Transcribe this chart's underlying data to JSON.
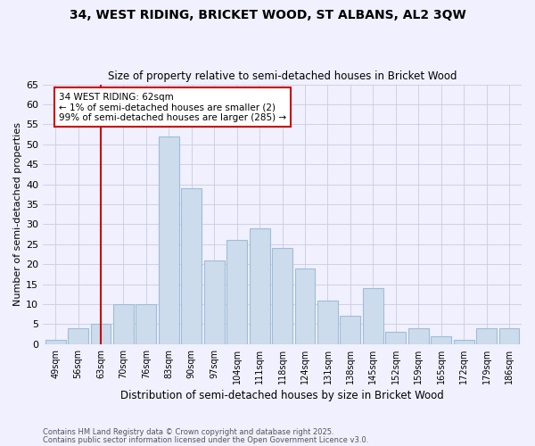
{
  "title1": "34, WEST RIDING, BRICKET WOOD, ST ALBANS, AL2 3QW",
  "title2": "Size of property relative to semi-detached houses in Bricket Wood",
  "xlabel": "Distribution of semi-detached houses by size in Bricket Wood",
  "ylabel": "Number of semi-detached properties",
  "categories": [
    "49sqm",
    "56sqm",
    "63sqm",
    "70sqm",
    "76sqm",
    "83sqm",
    "90sqm",
    "97sqm",
    "104sqm",
    "111sqm",
    "118sqm",
    "124sqm",
    "131sqm",
    "138sqm",
    "145sqm",
    "152sqm",
    "159sqm",
    "165sqm",
    "172sqm",
    "179sqm",
    "186sqm"
  ],
  "values": [
    1,
    4,
    5,
    10,
    10,
    52,
    39,
    21,
    26,
    29,
    24,
    19,
    11,
    7,
    14,
    3,
    4,
    2,
    1,
    4,
    4
  ],
  "bar_color": "#ccdcec",
  "bar_edge_color": "#a0bcd8",
  "highlight_bar_index": 2,
  "highlight_line_color": "#cc0000",
  "annotation_text": "34 WEST RIDING: 62sqm\n← 1% of semi-detached houses are smaller (2)\n99% of semi-detached houses are larger (285) →",
  "annotation_box_color": "#ffffff",
  "annotation_box_edge": "#cc0000",
  "footer1": "Contains HM Land Registry data © Crown copyright and database right 2025.",
  "footer2": "Contains public sector information licensed under the Open Government Licence v3.0.",
  "background_color": "#f0f0ff",
  "ylim": [
    0,
    65
  ],
  "yticks": [
    0,
    5,
    10,
    15,
    20,
    25,
    30,
    35,
    40,
    45,
    50,
    55,
    60,
    65
  ]
}
